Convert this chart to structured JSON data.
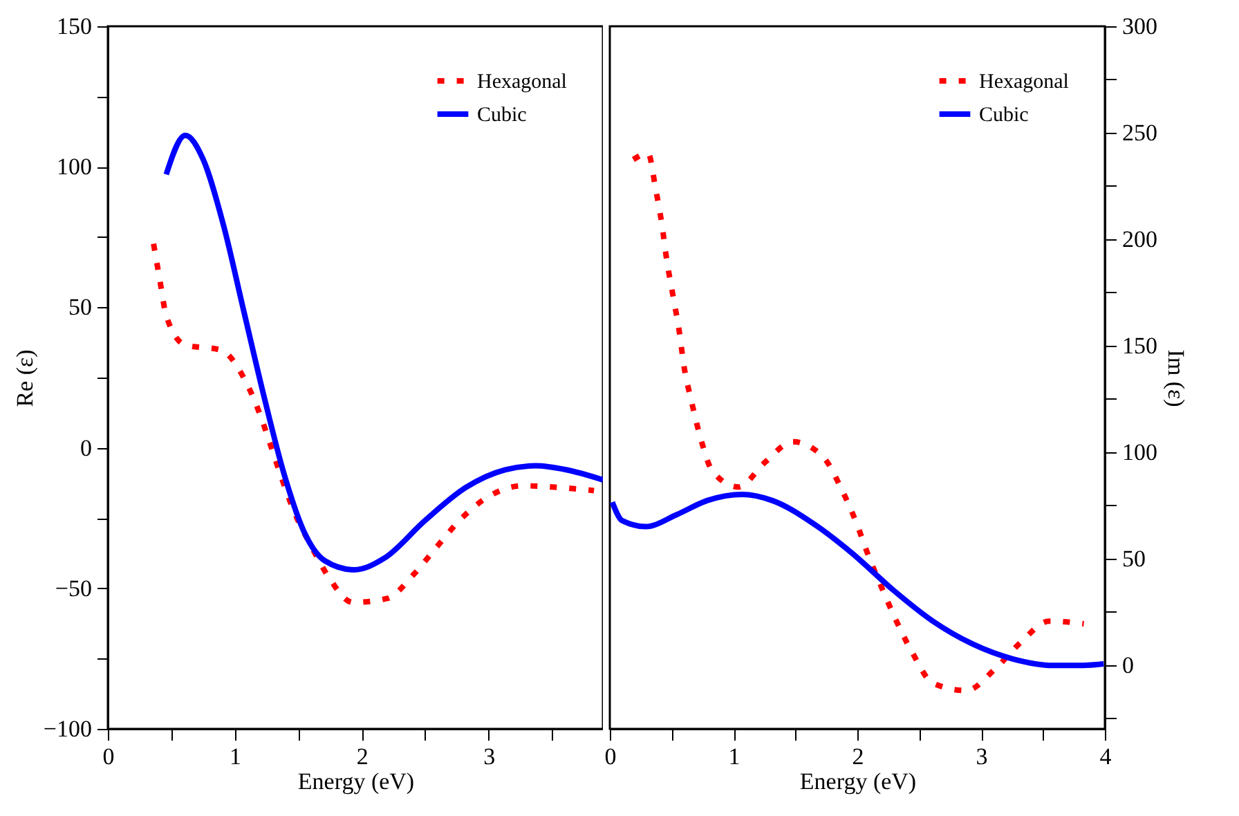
{
  "chart_data": [
    {
      "type": "line",
      "xlabel": "Energy (eV)",
      "ylabel": "Re (ε)",
      "xlim": [
        0,
        3.9
      ],
      "xticks": [
        0,
        {
          "value": 0.5,
          "label": null
        },
        1,
        {
          "value": 1.5,
          "label": null
        },
        2,
        {
          "value": 2.5,
          "label": null
        },
        3,
        {
          "value": 3.5,
          "label": null
        }
      ],
      "ylim": [
        -100,
        150
      ],
      "yticks": [
        -100,
        {
          "value": -75,
          "label": null
        },
        -50,
        {
          "value": -25,
          "label": null
        },
        0,
        {
          "value": 25,
          "label": null
        },
        50,
        {
          "value": 75,
          "label": null
        },
        100,
        {
          "value": 125,
          "label": null
        },
        150
      ],
      "grid": false,
      "legend": "top right",
      "series": [
        {
          "name": "Hexagonal",
          "color": "#ff0000",
          "line_style": "dotted",
          "x": [
            0.36,
            0.41,
            0.46,
            0.61,
            0.89,
            1.07,
            1.19,
            1.28,
            1.37,
            1.47,
            1.6,
            1.74,
            1.93,
            2.2,
            2.41,
            2.59,
            2.78,
            3.0,
            3.27,
            3.55,
            3.83
          ],
          "values": [
            72.6,
            59.6,
            47,
            36.6,
            34.8,
            25,
            12.9,
            1.2,
            -10.9,
            -23,
            -34.8,
            -46,
            -55,
            -53.6,
            -45,
            -35.3,
            -25.4,
            -17.3,
            -13.5,
            -14.1,
            -15.2
          ]
        },
        {
          "name": "Cubic",
          "color": "#0000ff",
          "line_style": "solid",
          "x": [
            0.46,
            0.61,
            0.75,
            0.91,
            1.07,
            1.23,
            1.39,
            1.55,
            1.71,
            1.94,
            2.18,
            2.5,
            2.82,
            3.13,
            3.37,
            3.61,
            3.9
          ],
          "values": [
            97.3,
            111.2,
            102.7,
            79.4,
            48.8,
            18.3,
            -9.6,
            -30.3,
            -40.2,
            -43.4,
            -39.2,
            -25.8,
            -14.1,
            -7.8,
            -6.4,
            -7.8,
            -11.4
          ]
        }
      ]
    },
    {
      "type": "line",
      "xlabel": "Energy (eV)",
      "y2label": "Im (ε)",
      "xlim": [
        0,
        4
      ],
      "xticks": [
        0,
        {
          "value": 0.5,
          "label": null
        },
        1,
        {
          "value": 1.5,
          "label": null
        },
        2,
        {
          "value": 2.5,
          "label": null
        },
        3,
        {
          "value": 3.5,
          "label": null
        },
        4
      ],
      "y2lim": [
        -30,
        300
      ],
      "y2ticks": [
        {
          "value": -25,
          "label": null
        },
        0,
        {
          "value": 25,
          "label": null
        },
        50,
        {
          "value": 75,
          "label": null
        },
        100,
        {
          "value": 125,
          "label": null
        },
        150,
        {
          "value": 175,
          "label": null
        },
        200,
        {
          "value": 225,
          "label": null
        },
        250,
        {
          "value": 275,
          "label": null
        },
        300
      ],
      "grid": false,
      "legend": "top right",
      "series": [
        {
          "name": "Hexagonal",
          "color": "#ff0000",
          "line_style": "dotted",
          "axis": "y2",
          "x": [
            0.19,
            0.31,
            0.37,
            0.42,
            0.46,
            0.51,
            0.56,
            0.6,
            0.66,
            0.73,
            0.83,
            1.04,
            1.25,
            1.48,
            1.73,
            1.87,
            1.99,
            2.09,
            2.2,
            2.32,
            2.45,
            2.61,
            2.88,
            3.12,
            3.32,
            3.55,
            3.83
          ],
          "values": [
            237.4,
            240.3,
            223.7,
            207.2,
            190.2,
            173.6,
            157.1,
            140.1,
            123.8,
            107.3,
            91,
            83.6,
            95,
            104.9,
            97.3,
            82.9,
            67.1,
            51.3,
            35.9,
            20.1,
            5.2,
            -8.5,
            -12,
            -1.4,
            10.6,
            20.6,
            19.4
          ]
        },
        {
          "name": "Cubic",
          "color": "#0000ff",
          "line_style": "solid",
          "axis": "y2",
          "x": [
            0.02,
            0.1,
            0.29,
            0.54,
            0.79,
            1.07,
            1.31,
            1.64,
            1.96,
            2.29,
            2.61,
            2.93,
            3.26,
            3.58,
            3.82,
            3.99
          ],
          "values": [
            76.5,
            67.8,
            65,
            70.6,
            77.3,
            80.1,
            77.3,
            66.6,
            52.4,
            35.2,
            20.6,
            9.9,
            2.8,
            -0.2,
            -0.2,
            0.5
          ]
        }
      ]
    }
  ]
}
